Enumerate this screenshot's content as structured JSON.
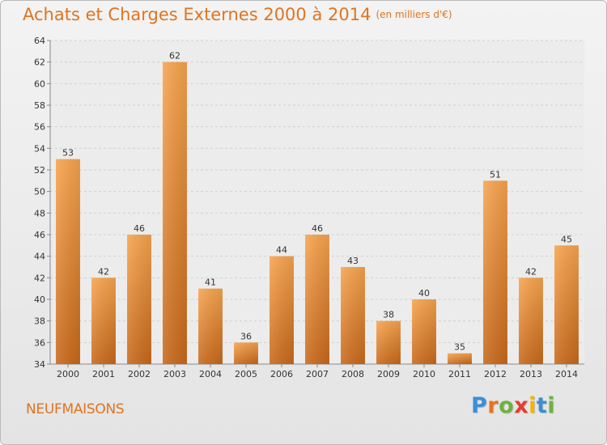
{
  "title": "Achats et Charges Externes 2000 à 2014",
  "unit": "(en milliers d'€)",
  "commune": "NEUFMAISONS",
  "logo": {
    "letters": [
      "P",
      "r",
      "o",
      "x",
      "i",
      "t",
      "i"
    ],
    "colors": [
      "#3a8fd6",
      "#e8731c",
      "#6cb33f",
      "#e63c2f",
      "#f4b400",
      "#3a8fd6",
      "#6cb33f"
    ]
  },
  "colors": {
    "accent": "#e0741f",
    "bar_top": "#f7a44e",
    "bar_bottom": "#c8681a"
  },
  "chart_data": {
    "type": "bar",
    "title": "Achats et Charges Externes 2000 à 2014",
    "subtitle": "(en milliers d'€)",
    "categories": [
      "2000",
      "2001",
      "2002",
      "2003",
      "2004",
      "2005",
      "2006",
      "2007",
      "2008",
      "2009",
      "2010",
      "2011",
      "2012",
      "2013",
      "2014"
    ],
    "values": [
      53,
      42,
      46,
      62,
      41,
      36,
      44,
      46,
      43,
      38,
      40,
      35,
      51,
      42,
      45
    ],
    "ylim": [
      34,
      64
    ],
    "yticks": [
      34,
      36,
      38,
      40,
      42,
      44,
      46,
      48,
      50,
      52,
      54,
      56,
      58,
      60,
      62,
      64
    ],
    "grid": true,
    "xlabel": "",
    "ylabel": ""
  }
}
